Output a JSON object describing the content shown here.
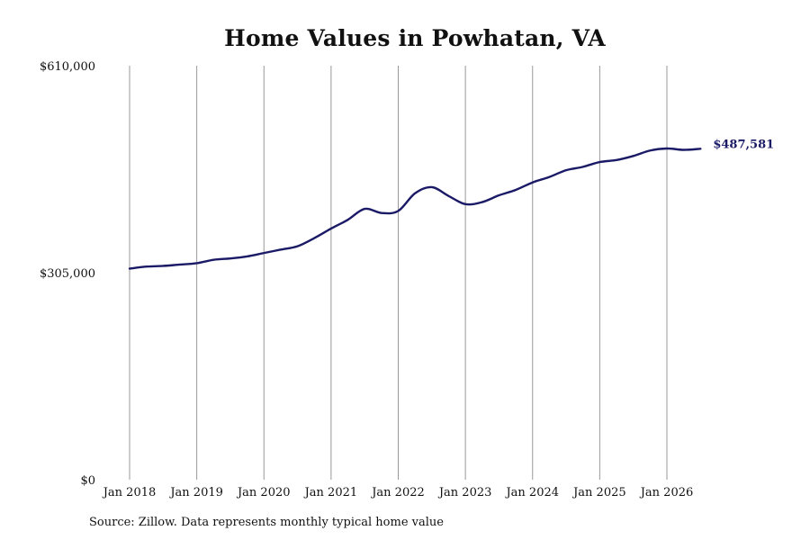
{
  "chart_data": {
    "type": "line",
    "title": "Home Values in Powhatan, VA",
    "xlabel": "",
    "ylabel": "",
    "source_note": "Source: Zillow. Data represents monthly typical home value",
    "ylim": [
      0,
      610000
    ],
    "y_ticks": [
      {
        "value": 0,
        "label": "$0"
      },
      {
        "value": 305000,
        "label": "$305,000"
      },
      {
        "value": 610000,
        "label": "$610,000"
      }
    ],
    "x_ticks": [
      {
        "date": "2018-01",
        "label": "Jan 2018"
      },
      {
        "date": "2019-01",
        "label": "Jan 2019"
      },
      {
        "date": "2020-01",
        "label": "Jan 2020"
      },
      {
        "date": "2021-01",
        "label": "Jan 2021"
      },
      {
        "date": "2022-01",
        "label": "Jan 2022"
      },
      {
        "date": "2023-01",
        "label": "Jan 2023"
      },
      {
        "date": "2024-01",
        "label": "Jan 2024"
      },
      {
        "date": "2025-01",
        "label": "Jan 2025"
      },
      {
        "date": "2026-01",
        "label": "Jan 2026"
      }
    ],
    "grid": {
      "vertical": true,
      "horizontal": false
    },
    "line_color": "#1a1a66",
    "grid_color": "#999999",
    "end_label": "$487,581",
    "series": [
      {
        "name": "",
        "points": [
          {
            "x": "2018-01",
            "y": 311000
          },
          {
            "x": "2018-04",
            "y": 314000
          },
          {
            "x": "2018-07",
            "y": 315000
          },
          {
            "x": "2018-10",
            "y": 317000
          },
          {
            "x": "2019-01",
            "y": 319000
          },
          {
            "x": "2019-04",
            "y": 324000
          },
          {
            "x": "2019-07",
            "y": 326000
          },
          {
            "x": "2019-10",
            "y": 329000
          },
          {
            "x": "2020-01",
            "y": 334000
          },
          {
            "x": "2020-04",
            "y": 339000
          },
          {
            "x": "2020-07",
            "y": 344000
          },
          {
            "x": "2020-10",
            "y": 356000
          },
          {
            "x": "2021-01",
            "y": 370000
          },
          {
            "x": "2021-04",
            "y": 383000
          },
          {
            "x": "2021-07",
            "y": 399000
          },
          {
            "x": "2021-10",
            "y": 393000
          },
          {
            "x": "2022-01",
            "y": 396000
          },
          {
            "x": "2022-04",
            "y": 422000
          },
          {
            "x": "2022-07",
            "y": 431000
          },
          {
            "x": "2022-10",
            "y": 418000
          },
          {
            "x": "2023-01",
            "y": 406000
          },
          {
            "x": "2023-04",
            "y": 409000
          },
          {
            "x": "2023-07",
            "y": 419000
          },
          {
            "x": "2023-10",
            "y": 427000
          },
          {
            "x": "2024-01",
            "y": 438000
          },
          {
            "x": "2024-04",
            "y": 446000
          },
          {
            "x": "2024-07",
            "y": 456000
          },
          {
            "x": "2024-10",
            "y": 461000
          },
          {
            "x": "2025-01",
            "y": 468000
          },
          {
            "x": "2025-04",
            "y": 471000
          },
          {
            "x": "2025-07",
            "y": 477000
          },
          {
            "x": "2025-10",
            "y": 485000
          },
          {
            "x": "2026-01",
            "y": 488000
          },
          {
            "x": "2026-04",
            "y": 486000
          },
          {
            "x": "2026-07",
            "y": 487581
          }
        ]
      }
    ]
  }
}
